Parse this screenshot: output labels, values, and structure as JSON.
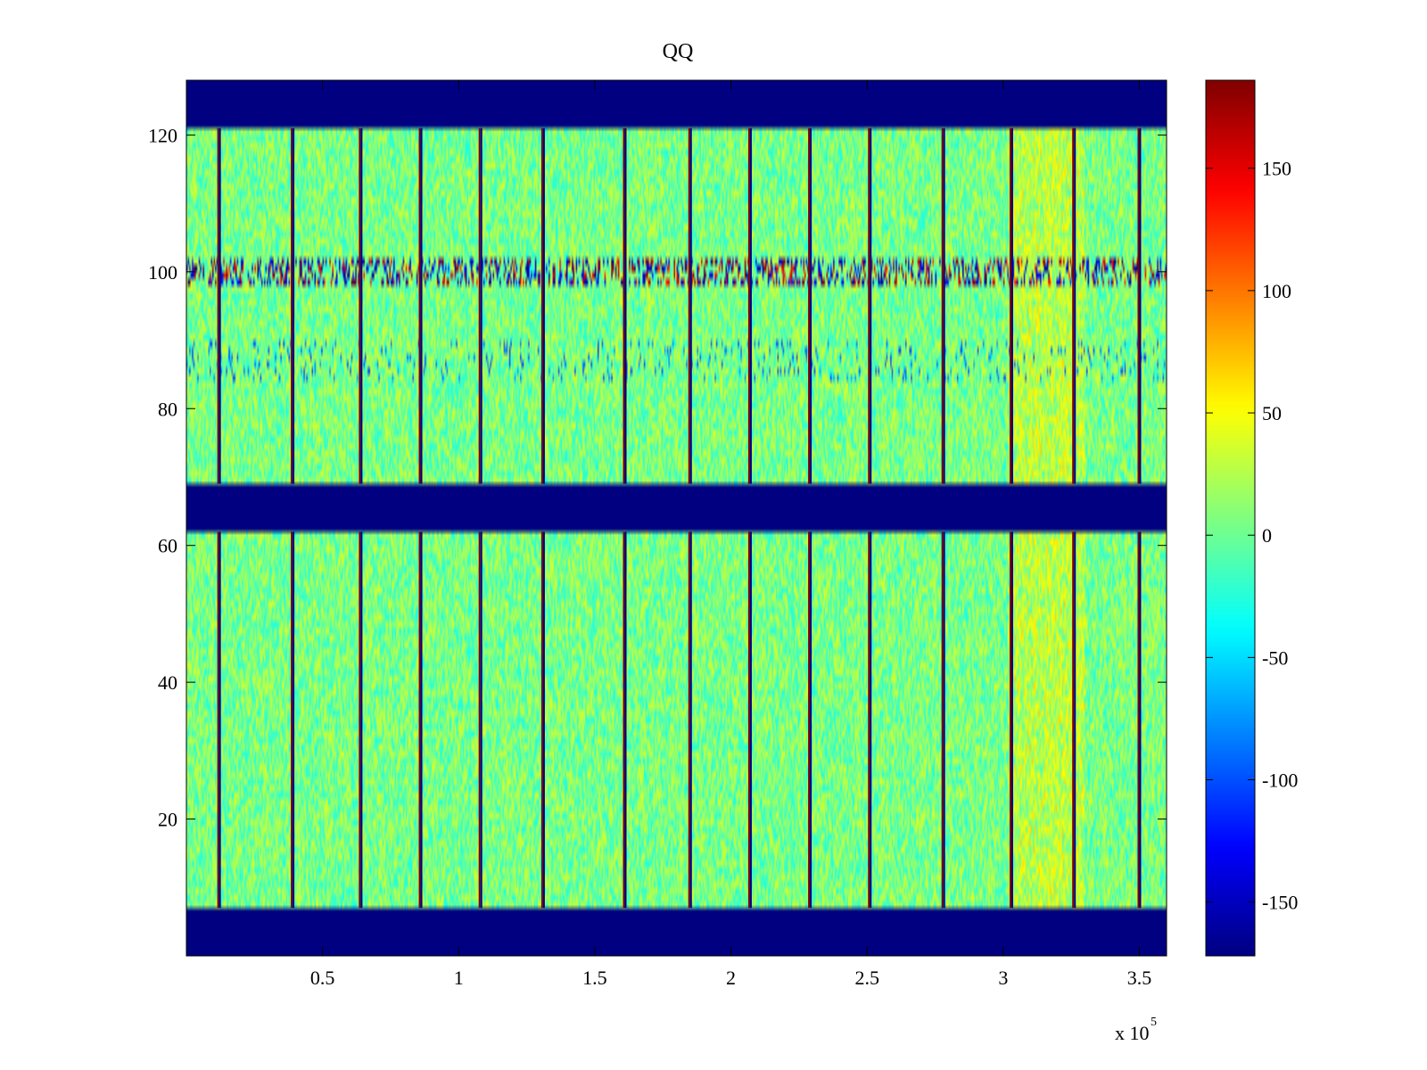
{
  "chart_data": {
    "type": "heatmap",
    "title": "QQ",
    "xlabel": "",
    "ylabel": "",
    "x_exponent_label": "x 10",
    "x_exponent_power": "5",
    "xlim": [
      0,
      3.6
    ],
    "ylim": [
      0,
      128
    ],
    "x_tick_values": [
      0.5,
      1,
      1.5,
      2,
      2.5,
      3,
      3.5
    ],
    "x_tick_labels": [
      "0.5",
      "1",
      "1.5",
      "2",
      "2.5",
      "3",
      "3.5"
    ],
    "y_tick_values": [
      20,
      40,
      60,
      80,
      100,
      120
    ],
    "y_tick_labels": [
      "20",
      "40",
      "60",
      "80",
      "100",
      "120"
    ],
    "colorbar": {
      "colormap": "jet",
      "clim": [
        -172,
        186
      ],
      "tick_values": [
        150,
        100,
        50,
        0,
        -50,
        -100,
        -150
      ],
      "tick_labels": [
        "150",
        "100",
        "50",
        "0",
        "-50",
        "-100",
        "-150"
      ]
    },
    "saturated_row_bands": [
      {
        "y_range": [
          0,
          7
        ],
        "value": -172
      },
      {
        "y_range": [
          62,
          69
        ],
        "value": -172
      },
      {
        "y_range": [
          121,
          128
        ],
        "value": -172
      }
    ],
    "vertical_stripe_x": [
      0.12,
      0.39,
      0.64,
      0.86,
      1.08,
      1.31,
      1.61,
      1.85,
      2.07,
      2.29,
      2.51,
      2.78,
      3.03,
      3.26,
      3.5
    ],
    "noisy_row_band": {
      "y_range": [
        98,
        102
      ]
    },
    "warm_region": {
      "x_range": [
        3.02,
        3.3
      ],
      "note": "elevated values ~30-50"
    },
    "background_value_range": [
      -30,
      40
    ]
  },
  "colors": {
    "band": "#00008f",
    "axis": "#000000",
    "background": "#ffffff"
  }
}
